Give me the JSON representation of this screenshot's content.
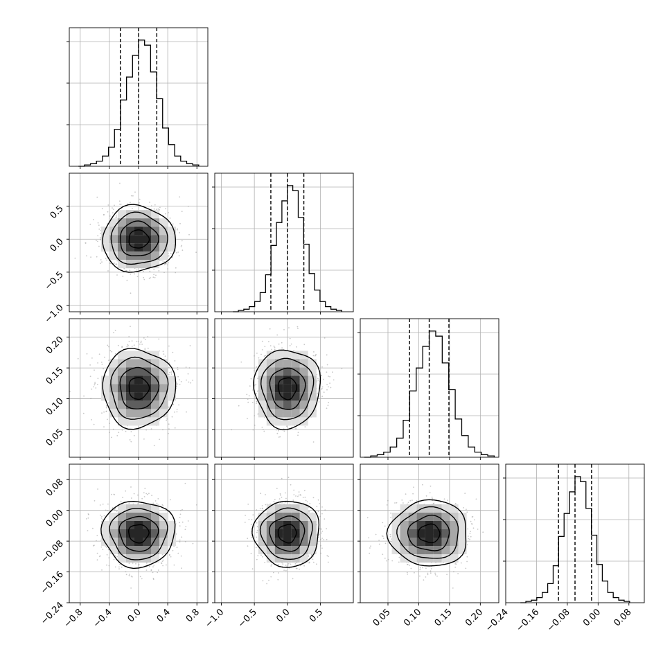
{
  "chart_data": {
    "type": "corner",
    "n_params": 4,
    "params": [
      {
        "id": "p0",
        "range": [
          -0.95,
          0.95
        ],
        "ticks": [
          -0.8,
          -0.4,
          0.0,
          0.4,
          0.8
        ],
        "tick_labels": [
          "−0.8",
          "−0.4",
          "0.0",
          "0.4",
          "0.8"
        ],
        "mean": 0.0,
        "sigma": 0.25,
        "quantiles": [
          -0.25,
          0.0,
          0.25
        ]
      },
      {
        "id": "p1",
        "range": [
          -1.1,
          1.0
        ],
        "ticks": [
          -1.0,
          -0.5,
          0.0,
          0.5
        ],
        "tick_labels": [
          "−1.0",
          "−0.5",
          "0.0",
          "0.5"
        ],
        "mean": 0.0,
        "sigma": 0.25,
        "quantiles": [
          -0.25,
          0.0,
          0.25
        ]
      },
      {
        "id": "p2",
        "range": [
          0.005,
          0.23
        ],
        "ticks": [
          0.05,
          0.1,
          0.15,
          0.2
        ],
        "tick_labels": [
          "0.05",
          "0.10",
          "0.15",
          "0.20"
        ],
        "mean": 0.117,
        "sigma": 0.032,
        "quantiles": [
          0.085,
          0.117,
          0.149
        ]
      },
      {
        "id": "p3",
        "range": [
          -0.24,
          0.12
        ],
        "ticks": [
          -0.24,
          -0.16,
          -0.08,
          0.0,
          0.08
        ],
        "tick_labels": [
          "−0.24",
          "−0.16",
          "−0.08",
          "0.00",
          "0.08"
        ],
        "mean": -0.06,
        "sigma": 0.043,
        "quantiles": [
          -0.103,
          -0.06,
          -0.017
        ]
      }
    ],
    "histogram": {
      "bins": 20,
      "relative_heights": [
        0.0,
        0.01,
        0.02,
        0.04,
        0.08,
        0.15,
        0.29,
        0.52,
        0.7,
        0.87,
        0.99,
        0.95,
        0.74,
        0.53,
        0.3,
        0.17,
        0.08,
        0.04,
        0.02,
        0.01
      ]
    },
    "contours": {
      "levels_sigma": [
        0.55,
        1.05,
        1.55,
        2.0
      ],
      "style": "filled density with sample points and black contour lines"
    },
    "grid": true,
    "quantile_line_style": "dashed"
  }
}
